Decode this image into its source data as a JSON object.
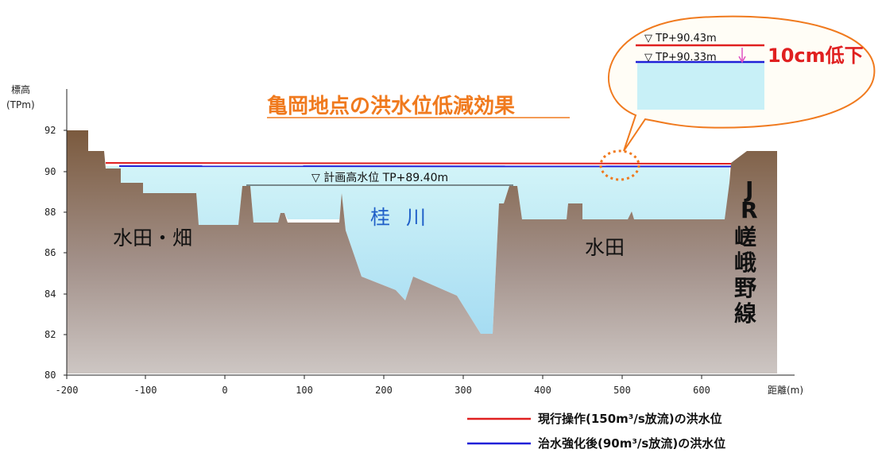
{
  "title": "亀岡地点の洪水位低減効果",
  "axes": {
    "y_title_top": "標高",
    "y_title_bottom": "(TPm)",
    "x_title": "距離(m)",
    "y_ticks": [
      "92",
      "90",
      "88",
      "86",
      "84",
      "82",
      "80"
    ],
    "x_ticks": [
      "-200",
      "-100",
      "0",
      "100",
      "200",
      "300",
      "400",
      "500",
      "600"
    ]
  },
  "labels": {
    "left_field": "水田・畑",
    "river": "桂 川",
    "right_field": "水田",
    "planned_level": "▽ 計画高水位 TP+89.40m"
  },
  "railway": {
    "chars": [
      "J",
      "R",
      "嵯",
      "峨",
      "野",
      "線"
    ]
  },
  "callout": {
    "current_level": "▽ TP+90.43m",
    "improved_level": "▽ TP+90.33m",
    "drop": "10cm低下"
  },
  "legend": [
    {
      "label": "現行操作(150m³/s放流)の洪水位",
      "color": "#e02020"
    },
    {
      "label": "治水強化後(90m³/s放流)の洪水位",
      "color": "#2020d8"
    }
  ],
  "colors": {
    "ground_top": "#7a5a3e",
    "ground_bottom": "#c8c0bc",
    "water": "#c8f0f7",
    "water_deep": "#a8e4f4",
    "callout_border": "#f07a1e",
    "callout_fill": "#fffdf6"
  }
}
